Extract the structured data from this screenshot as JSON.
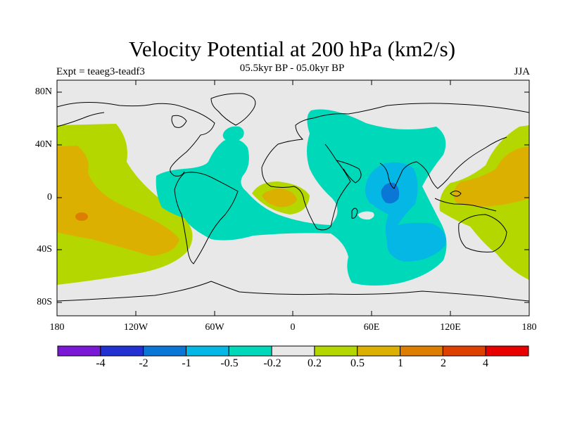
{
  "title": "Velocity Potential at 200 hPa (km2/s)",
  "subtitle": "05.5kyr BP - 05.0kyr BP",
  "left_note": "Expt = teaeg3-teadf3",
  "right_note": "JJA",
  "lat_labels": [
    "80N",
    "40N",
    "0",
    "40S",
    "80S"
  ],
  "lon_labels": [
    "180",
    "120W",
    "60W",
    "0",
    "60E",
    "120E",
    "180"
  ],
  "colorbar": {
    "colors": [
      "#7b18d6",
      "#2331d2",
      "#0a77d6",
      "#05b7e4",
      "#00d9b9",
      "#e8e8e8",
      "#b5d700",
      "#dcb000",
      "#dd7d02",
      "#de4000",
      "#e80000"
    ],
    "labels": [
      "-4",
      "-2",
      "-1",
      "-0.5",
      "-0.2",
      "0.2",
      "0.5",
      "1",
      "2",
      "4"
    ]
  }
}
